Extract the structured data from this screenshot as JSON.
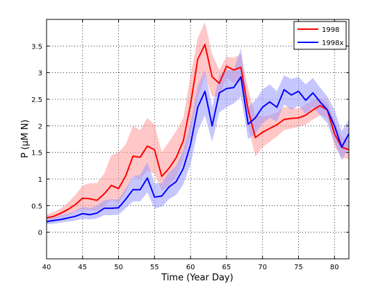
{
  "chart_data": {
    "type": "line",
    "xlabel": "Time (Year Day)",
    "ylabel": "P (μM N)",
    "xlim": [
      40,
      82
    ],
    "ylim": [
      -0.5,
      4.0
    ],
    "xticks": [
      40,
      45,
      50,
      55,
      60,
      65,
      70,
      75,
      80
    ],
    "yticks": [
      0,
      0.5,
      1,
      1.5,
      2,
      2.5,
      3,
      3.5
    ],
    "grid": true,
    "legend_position": "top-right",
    "x": [
      40,
      41,
      42,
      43,
      44,
      45,
      46,
      47,
      48,
      49,
      50,
      51,
      52,
      53,
      54,
      55,
      56,
      57,
      58,
      59,
      60,
      61,
      62,
      63,
      64,
      65,
      66,
      67,
      68,
      69,
      70,
      71,
      72,
      73,
      74,
      75,
      76,
      77,
      78,
      79,
      80,
      81,
      82
    ],
    "series": [
      {
        "name": "1998",
        "color": "#ff0000",
        "band_color": "#ff9999",
        "values": [
          0.27,
          0.3,
          0.36,
          0.43,
          0.52,
          0.64,
          0.63,
          0.6,
          0.72,
          0.88,
          0.82,
          1.06,
          1.43,
          1.41,
          1.62,
          1.55,
          1.05,
          1.2,
          1.4,
          1.72,
          2.4,
          3.25,
          3.53,
          2.92,
          2.8,
          3.12,
          3.05,
          3.1,
          2.3,
          1.78,
          1.88,
          1.95,
          2.02,
          2.12,
          2.14,
          2.15,
          2.2,
          2.3,
          2.38,
          2.3,
          1.85,
          1.6,
          1.55
        ],
        "lower": [
          0.22,
          0.24,
          0.28,
          0.32,
          0.38,
          0.42,
          0.42,
          0.4,
          0.48,
          0.6,
          0.55,
          0.75,
          1.05,
          1.0,
          1.15,
          1.1,
          0.78,
          0.88,
          1.05,
          1.35,
          1.85,
          2.5,
          2.95,
          2.55,
          2.55,
          2.9,
          2.8,
          2.85,
          2.0,
          1.42,
          1.6,
          1.7,
          1.8,
          1.92,
          1.95,
          1.98,
          2.02,
          2.12,
          2.2,
          2.15,
          1.62,
          1.4,
          1.38
        ],
        "upper": [
          0.33,
          0.38,
          0.45,
          0.56,
          0.7,
          0.88,
          0.92,
          0.92,
          1.1,
          1.45,
          1.5,
          1.65,
          2.0,
          1.92,
          2.15,
          2.02,
          1.5,
          1.7,
          1.9,
          2.15,
          2.95,
          3.65,
          3.95,
          3.35,
          3.05,
          3.3,
          3.28,
          3.35,
          2.7,
          2.2,
          2.18,
          2.2,
          2.25,
          2.35,
          2.35,
          2.32,
          2.4,
          2.48,
          2.52,
          2.45,
          2.1,
          1.8,
          1.72
        ]
      },
      {
        "name": "1998x",
        "color": "#0000ff",
        "band_color": "#9999ff",
        "values": [
          0.2,
          0.22,
          0.24,
          0.27,
          0.3,
          0.35,
          0.33,
          0.36,
          0.45,
          0.45,
          0.46,
          0.62,
          0.8,
          0.8,
          1.02,
          0.66,
          0.68,
          0.85,
          0.95,
          1.2,
          1.65,
          2.35,
          2.65,
          2.0,
          2.62,
          2.7,
          2.72,
          2.92,
          2.03,
          2.15,
          2.35,
          2.45,
          2.35,
          2.68,
          2.58,
          2.65,
          2.48,
          2.62,
          2.45,
          2.3,
          2.0,
          1.6,
          1.85
        ],
        "lower": [
          0.15,
          0.16,
          0.18,
          0.2,
          0.22,
          0.25,
          0.24,
          0.26,
          0.32,
          0.32,
          0.33,
          0.45,
          0.58,
          0.58,
          0.75,
          0.45,
          0.48,
          0.62,
          0.7,
          0.9,
          1.28,
          1.9,
          2.2,
          1.7,
          2.25,
          2.35,
          2.42,
          2.55,
          1.75,
          1.85,
          2.05,
          2.15,
          2.08,
          2.4,
          2.3,
          2.38,
          2.22,
          2.35,
          2.2,
          2.05,
          1.7,
          1.35,
          1.6
        ],
        "upper": [
          0.26,
          0.28,
          0.32,
          0.35,
          0.4,
          0.48,
          0.45,
          0.5,
          0.6,
          0.62,
          0.62,
          0.82,
          1.05,
          1.08,
          1.32,
          0.92,
          0.92,
          1.12,
          1.25,
          1.55,
          2.05,
          2.75,
          3.05,
          2.35,
          2.95,
          3.05,
          3.05,
          3.45,
          2.35,
          2.48,
          2.68,
          2.78,
          2.65,
          2.95,
          2.88,
          2.92,
          2.78,
          2.9,
          2.72,
          2.55,
          2.3,
          1.9,
          2.12
        ]
      }
    ]
  }
}
